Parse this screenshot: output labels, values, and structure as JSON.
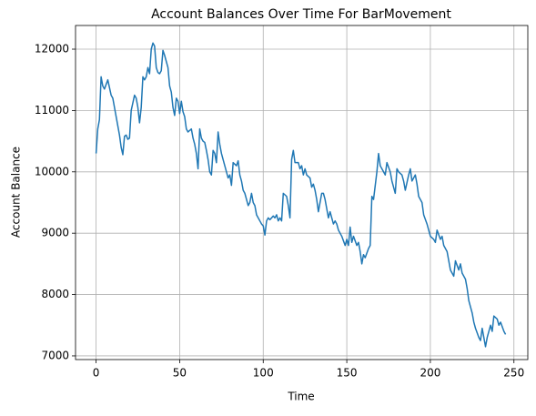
{
  "chart_data": {
    "type": "line",
    "title": "Account Balances Over Time For BarMovement",
    "x_label": "Time",
    "y_label": "Account Balance",
    "color": "#1f77b4",
    "grid": true,
    "x": [
      0,
      1,
      2,
      3,
      4,
      5,
      7,
      9,
      10,
      12,
      14,
      15,
      16,
      17,
      18,
      19,
      20,
      21,
      23,
      24,
      25,
      26,
      27,
      28,
      29,
      30,
      31,
      32,
      33,
      34,
      35,
      36,
      37,
      38,
      39,
      40,
      41,
      42,
      43,
      44,
      45,
      46,
      47,
      48,
      49,
      50,
      51,
      52,
      53,
      54,
      55,
      57,
      58,
      59,
      60,
      61,
      62,
      63,
      64,
      65,
      66,
      67,
      68,
      69,
      70,
      71,
      72,
      73,
      74,
      75,
      77,
      78,
      79,
      80,
      81,
      82,
      84,
      85,
      86,
      87,
      88,
      89,
      91,
      92,
      93,
      94,
      95,
      96,
      98,
      99,
      100,
      101,
      102,
      103,
      104,
      106,
      107,
      108,
      109,
      110,
      111,
      112,
      114,
      115,
      116,
      117,
      118,
      119,
      121,
      122,
      123,
      124,
      125,
      126,
      128,
      129,
      130,
      131,
      132,
      133,
      135,
      136,
      137,
      138,
      139,
      140,
      142,
      143,
      144,
      145,
      146,
      147,
      149,
      150,
      151,
      152,
      153,
      154,
      156,
      157,
      158,
      159,
      160,
      161,
      163,
      164,
      165,
      166,
      168,
      169,
      170,
      172,
      173,
      174,
      176,
      177,
      179,
      180,
      181,
      183,
      184,
      185,
      187,
      188,
      189,
      191,
      192,
      193,
      195,
      196,
      198,
      199,
      200,
      202,
      203,
      204,
      206,
      207,
      208,
      210,
      211,
      212,
      214,
      215,
      217,
      218,
      219,
      221,
      222,
      223,
      225,
      226,
      227,
      229,
      230,
      231,
      233,
      234,
      236,
      237,
      238,
      240,
      241,
      242,
      244,
      245
    ],
    "values": [
      10300,
      10700,
      10850,
      11550,
      11400,
      11350,
      11500,
      11250,
      11200,
      10900,
      10600,
      10400,
      10280,
      10580,
      10600,
      10530,
      10550,
      11000,
      11250,
      11200,
      11050,
      10800,
      11050,
      11550,
      11500,
      11550,
      11700,
      11600,
      12000,
      12100,
      12050,
      11700,
      11620,
      11600,
      11650,
      11980,
      11900,
      11800,
      11700,
      11400,
      11300,
      11050,
      10920,
      11200,
      11150,
      10950,
      11150,
      10980,
      10900,
      10700,
      10650,
      10700,
      10550,
      10450,
      10300,
      10050,
      10700,
      10550,
      10500,
      10480,
      10350,
      10200,
      10000,
      9950,
      10350,
      10300,
      10150,
      10650,
      10450,
      10300,
      10100,
      10000,
      9900,
      9950,
      9780,
      10150,
      10100,
      10180,
      9950,
      9850,
      9700,
      9650,
      9450,
      9500,
      9650,
      9500,
      9450,
      9300,
      9200,
      9150,
      9120,
      8970,
      9200,
      9250,
      9220,
      9280,
      9250,
      9300,
      9200,
      9250,
      9200,
      9650,
      9600,
      9450,
      9250,
      10200,
      10350,
      10150,
      10150,
      10050,
      10100,
      9950,
      10050,
      9950,
      9900,
      9750,
      9800,
      9700,
      9550,
      9350,
      9650,
      9650,
      9550,
      9400,
      9250,
      9350,
      9150,
      9200,
      9150,
      9050,
      9000,
      8950,
      8800,
      8900,
      8800,
      9100,
      8850,
      8950,
      8800,
      8850,
      8700,
      8500,
      8650,
      8600,
      8750,
      8800,
      9600,
      9550,
      10000,
      10300,
      10100,
      10000,
      9950,
      10150,
      10000,
      9850,
      9650,
      10050,
      10000,
      9950,
      9850,
      9700,
      9950,
      10050,
      9850,
      9950,
      9800,
      9600,
      9500,
      9300,
      9150,
      9050,
      8950,
      8900,
      8850,
      9050,
      8900,
      8950,
      8800,
      8700,
      8550,
      8400,
      8300,
      8550,
      8400,
      8500,
      8350,
      8250,
      8100,
      7900,
      7700,
      7550,
      7450,
      7300,
      7250,
      7450,
      7150,
      7300,
      7500,
      7400,
      7650,
      7600,
      7500,
      7550,
      7400,
      7350
    ],
    "xlim": [
      -12.3,
      258.3
    ],
    "xticks": [
      0,
      50,
      100,
      150,
      200,
      250
    ],
    "ylim": [
      6940,
      12386
    ],
    "yticks": [
      7000,
      8000,
      9000,
      10000,
      11000,
      12000
    ]
  }
}
